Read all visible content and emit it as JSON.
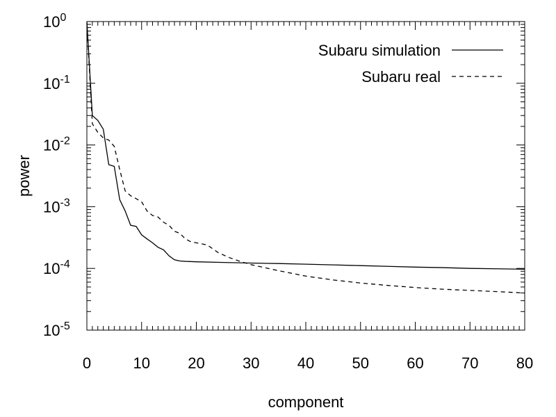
{
  "chart_data": {
    "type": "line",
    "title": "",
    "xlabel": "component",
    "ylabel": "power",
    "xlim": [
      0,
      80
    ],
    "ylim": [
      1e-05,
      1
    ],
    "yscale": "log",
    "grid": false,
    "legend_position": "top-right",
    "x_ticks": [
      0,
      10,
      20,
      30,
      40,
      50,
      60,
      70,
      80
    ],
    "x_tick_labels": [
      "0",
      "10",
      "20",
      "30",
      "40",
      "50",
      "60",
      "70",
      "80"
    ],
    "y_ticks": [
      1,
      0.1,
      0.01,
      0.001,
      0.0001,
      1e-05
    ],
    "y_tick_labels": [
      {
        "base": "10",
        "exp": "0"
      },
      {
        "base": "10",
        "exp": "-1"
      },
      {
        "base": "10",
        "exp": "-2"
      },
      {
        "base": "10",
        "exp": "-3"
      },
      {
        "base": "10",
        "exp": "-4"
      },
      {
        "base": "10",
        "exp": "-5"
      }
    ],
    "series": [
      {
        "name": "Subaru simulation",
        "style": "solid",
        "color": "#000000",
        "x": [
          0,
          1,
          2,
          3,
          4,
          5,
          6,
          7,
          8,
          9,
          10,
          11,
          12,
          13,
          14,
          15,
          16,
          17,
          18,
          20,
          25,
          30,
          35,
          40,
          45,
          50,
          55,
          60,
          65,
          70,
          75,
          80
        ],
        "y": [
          1.0,
          0.03,
          0.025,
          0.018,
          0.0048,
          0.0045,
          0.0013,
          0.00085,
          0.0005,
          0.00048,
          0.00035,
          0.0003,
          0.00026,
          0.00022,
          0.0002,
          0.00016,
          0.000138,
          0.000132,
          0.00013,
          0.000128,
          0.000125,
          0.000122,
          0.00012,
          0.000117,
          0.000114,
          0.000111,
          0.000108,
          0.000105,
          0.000103,
          0.0001,
          9.85e-05,
          9.7e-05
        ]
      },
      {
        "name": "Subaru real",
        "style": "dashed",
        "color": "#000000",
        "x": [
          0,
          1,
          2,
          3,
          4,
          5,
          6,
          7,
          8,
          9,
          10,
          11,
          12,
          13,
          14,
          15,
          16,
          17,
          18,
          19,
          20,
          22,
          24,
          26,
          28,
          30,
          35,
          40,
          45,
          50,
          55,
          60,
          65,
          70,
          75,
          80
        ],
        "y": [
          0.95,
          0.022,
          0.016,
          0.013,
          0.012,
          0.0095,
          0.004,
          0.0018,
          0.0015,
          0.00135,
          0.0012,
          0.00085,
          0.00072,
          0.00068,
          0.00056,
          0.0005,
          0.0004,
          0.00037,
          0.0003,
          0.00027,
          0.00026,
          0.00024,
          0.00018,
          0.00015,
          0.00013,
          0.000115,
          9.2e-05,
          7.5e-05,
          6.5e-05,
          5.8e-05,
          5.3e-05,
          4.9e-05,
          4.6e-05,
          4.4e-05,
          4.2e-05,
          4e-05
        ]
      }
    ]
  }
}
